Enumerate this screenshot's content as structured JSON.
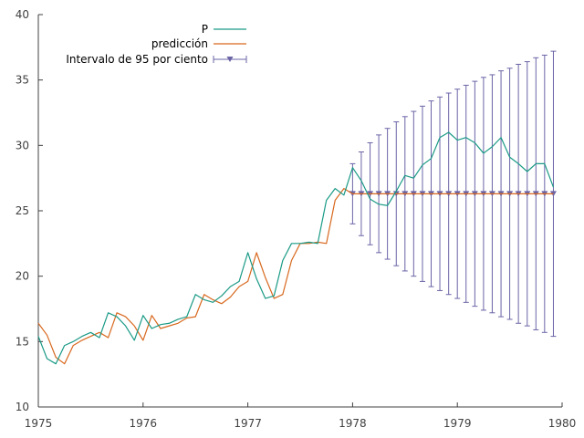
{
  "chart_data": {
    "type": "line",
    "title": "",
    "xlabel": "",
    "ylabel": "",
    "xlim": [
      1975,
      1980
    ],
    "ylim": [
      10,
      40
    ],
    "x_ticks": [
      1975,
      1976,
      1977,
      1978,
      1979,
      1980
    ],
    "y_ticks": [
      10,
      15,
      20,
      25,
      30,
      35,
      40
    ],
    "grid": false,
    "legend_position": "top-left",
    "colors": {
      "P": "#1a9a86",
      "prediccion": "#d8681e",
      "interval": "#6a64a6"
    },
    "series": [
      {
        "name": "P",
        "key": "P",
        "x": [
          1975.0,
          1975.083,
          1975.167,
          1975.25,
          1975.333,
          1975.417,
          1975.5,
          1975.583,
          1975.667,
          1975.75,
          1975.833,
          1975.917,
          1976.0,
          1976.083,
          1976.167,
          1976.25,
          1976.333,
          1976.417,
          1976.5,
          1976.583,
          1976.667,
          1976.75,
          1976.833,
          1976.917,
          1977.0,
          1977.083,
          1977.167,
          1977.25,
          1977.333,
          1977.417,
          1977.5,
          1977.583,
          1977.667,
          1977.75,
          1977.833,
          1977.917,
          1978.0,
          1978.083,
          1978.167,
          1978.25,
          1978.333,
          1978.417,
          1978.5,
          1978.583,
          1978.667,
          1978.75,
          1978.833,
          1978.917,
          1979.0,
          1979.083,
          1979.167,
          1979.25,
          1979.333,
          1979.417,
          1979.5,
          1979.583,
          1979.667,
          1979.75,
          1979.833,
          1979.917
        ],
        "values": [
          15.4,
          13.7,
          13.3,
          14.7,
          15.0,
          15.4,
          15.7,
          15.3,
          17.2,
          16.9,
          16.2,
          15.1,
          17.0,
          16.0,
          16.3,
          16.4,
          16.7,
          16.9,
          18.6,
          18.2,
          18.0,
          18.5,
          19.2,
          19.6,
          21.8,
          19.8,
          18.3,
          18.5,
          21.2,
          22.5,
          22.5,
          22.6,
          22.5,
          25.8,
          26.7,
          26.2,
          28.3,
          27.3,
          25.9,
          25.5,
          25.4,
          26.5,
          27.7,
          27.5,
          28.5,
          29.0,
          30.6,
          31.0,
          30.4,
          30.6,
          30.2,
          29.4,
          29.9,
          30.6,
          29.1,
          28.6,
          28.0,
          28.6,
          28.6,
          26.8
        ]
      },
      {
        "name": "predicción",
        "key": "prediccion",
        "x": [
          1975.0,
          1975.083,
          1975.167,
          1975.25,
          1975.333,
          1975.417,
          1975.5,
          1975.583,
          1975.667,
          1975.75,
          1975.833,
          1975.917,
          1976.0,
          1976.083,
          1976.167,
          1976.25,
          1976.333,
          1976.417,
          1976.5,
          1976.583,
          1976.667,
          1976.75,
          1976.833,
          1976.917,
          1977.0,
          1977.083,
          1977.167,
          1977.25,
          1977.333,
          1977.417,
          1977.5,
          1977.583,
          1977.667,
          1977.75,
          1977.833,
          1977.917,
          1978.0,
          1978.083,
          1978.167,
          1978.25,
          1978.333,
          1978.417,
          1978.5,
          1978.583,
          1978.667,
          1978.75,
          1978.833,
          1978.917,
          1979.0,
          1979.083,
          1979.167,
          1979.25,
          1979.333,
          1979.417,
          1979.5,
          1979.583,
          1979.667,
          1979.75,
          1979.833,
          1979.917
        ],
        "values": [
          16.4,
          15.5,
          13.8,
          13.3,
          14.7,
          15.1,
          15.4,
          15.7,
          15.3,
          17.2,
          16.9,
          16.2,
          15.1,
          17.0,
          16.0,
          16.2,
          16.4,
          16.8,
          16.9,
          18.6,
          18.2,
          17.9,
          18.4,
          19.2,
          19.6,
          21.8,
          19.9,
          18.3,
          18.6,
          21.2,
          22.5,
          22.5,
          22.6,
          22.5,
          25.8,
          26.7,
          26.3,
          26.3,
          26.3,
          26.3,
          26.3,
          26.3,
          26.3,
          26.3,
          26.3,
          26.3,
          26.3,
          26.3,
          26.3,
          26.3,
          26.3,
          26.3,
          26.3,
          26.3,
          26.3,
          26.3,
          26.3,
          26.3,
          26.3,
          26.3
        ]
      }
    ],
    "interval": {
      "name": "Intervalo de 95 por ciento",
      "key": "interval",
      "x": [
        1978.0,
        1978.083,
        1978.167,
        1978.25,
        1978.333,
        1978.417,
        1978.5,
        1978.583,
        1978.667,
        1978.75,
        1978.833,
        1978.917,
        1979.0,
        1979.083,
        1979.167,
        1979.25,
        1979.333,
        1979.417,
        1979.5,
        1979.583,
        1979.667,
        1979.75,
        1979.833,
        1979.917
      ],
      "center": [
        26.3,
        26.3,
        26.3,
        26.3,
        26.3,
        26.3,
        26.3,
        26.3,
        26.3,
        26.3,
        26.3,
        26.3,
        26.3,
        26.3,
        26.3,
        26.3,
        26.3,
        26.3,
        26.3,
        26.3,
        26.3,
        26.3,
        26.3,
        26.3
      ],
      "lower": [
        24.0,
        23.1,
        22.4,
        21.8,
        21.3,
        20.8,
        20.4,
        20.0,
        19.6,
        19.2,
        18.9,
        18.6,
        18.3,
        18.0,
        17.7,
        17.4,
        17.2,
        16.9,
        16.7,
        16.4,
        16.2,
        15.9,
        15.7,
        15.4
      ],
      "upper": [
        28.6,
        29.5,
        30.2,
        30.8,
        31.3,
        31.8,
        32.2,
        32.6,
        33.0,
        33.4,
        33.7,
        34.0,
        34.3,
        34.6,
        34.9,
        35.2,
        35.4,
        35.7,
        35.9,
        36.2,
        36.4,
        36.7,
        36.9,
        37.2
      ]
    }
  }
}
